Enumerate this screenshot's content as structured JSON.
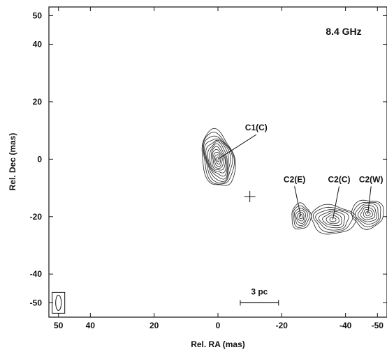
{
  "chart_data": {
    "type": "contour",
    "title": "8.4  GHz",
    "xlabel": "Rel. RA (mas)",
    "ylabel": "Rel. Dec (mas)",
    "xlim": [
      53,
      -53
    ],
    "ylim": [
      -55,
      53
    ],
    "x_reversed": true,
    "x_ticks": [
      50,
      40,
      20,
      0,
      -20,
      -40,
      -50
    ],
    "y_ticks": [
      50,
      40,
      20,
      0,
      -20,
      -40,
      -50
    ],
    "x_tick_labels": [
      "50",
      "40",
      "20",
      "0",
      "-20",
      "-40",
      "-50"
    ],
    "y_tick_labels": [
      "50",
      "40",
      "20",
      "0",
      "-20",
      "-40",
      "-50"
    ],
    "grid": false,
    "components": [
      {
        "name": "C1(C)",
        "x": 0,
        "y": 0,
        "label_x": -12,
        "label_y": 10,
        "levels": 12,
        "ra_spread": 5,
        "dec_spread": 10,
        "angle": -12
      },
      {
        "name": "C2(E)",
        "x": -26,
        "y": -20,
        "label_x": -24,
        "label_y": -8,
        "levels": 6,
        "ra_spread": 3,
        "dec_spread": 4.5,
        "angle": 0
      },
      {
        "name": "C2(C)",
        "x": -36,
        "y": -21,
        "label_x": -38,
        "label_y": -8,
        "levels": 7,
        "ra_spread": 7,
        "dec_spread": 5,
        "angle": 5
      },
      {
        "name": "C2(W)",
        "x": -47,
        "y": -19,
        "label_x": -48,
        "label_y": -8,
        "levels": 7,
        "ra_spread": 5,
        "dec_spread": 5,
        "angle": 0
      }
    ],
    "cross_marker": {
      "x": -10,
      "y": -13
    },
    "scale_bar": {
      "label": "3 pc",
      "x1": -7,
      "x2": -19,
      "y": -50
    },
    "beam": {
      "x": 50,
      "y": -50
    }
  }
}
